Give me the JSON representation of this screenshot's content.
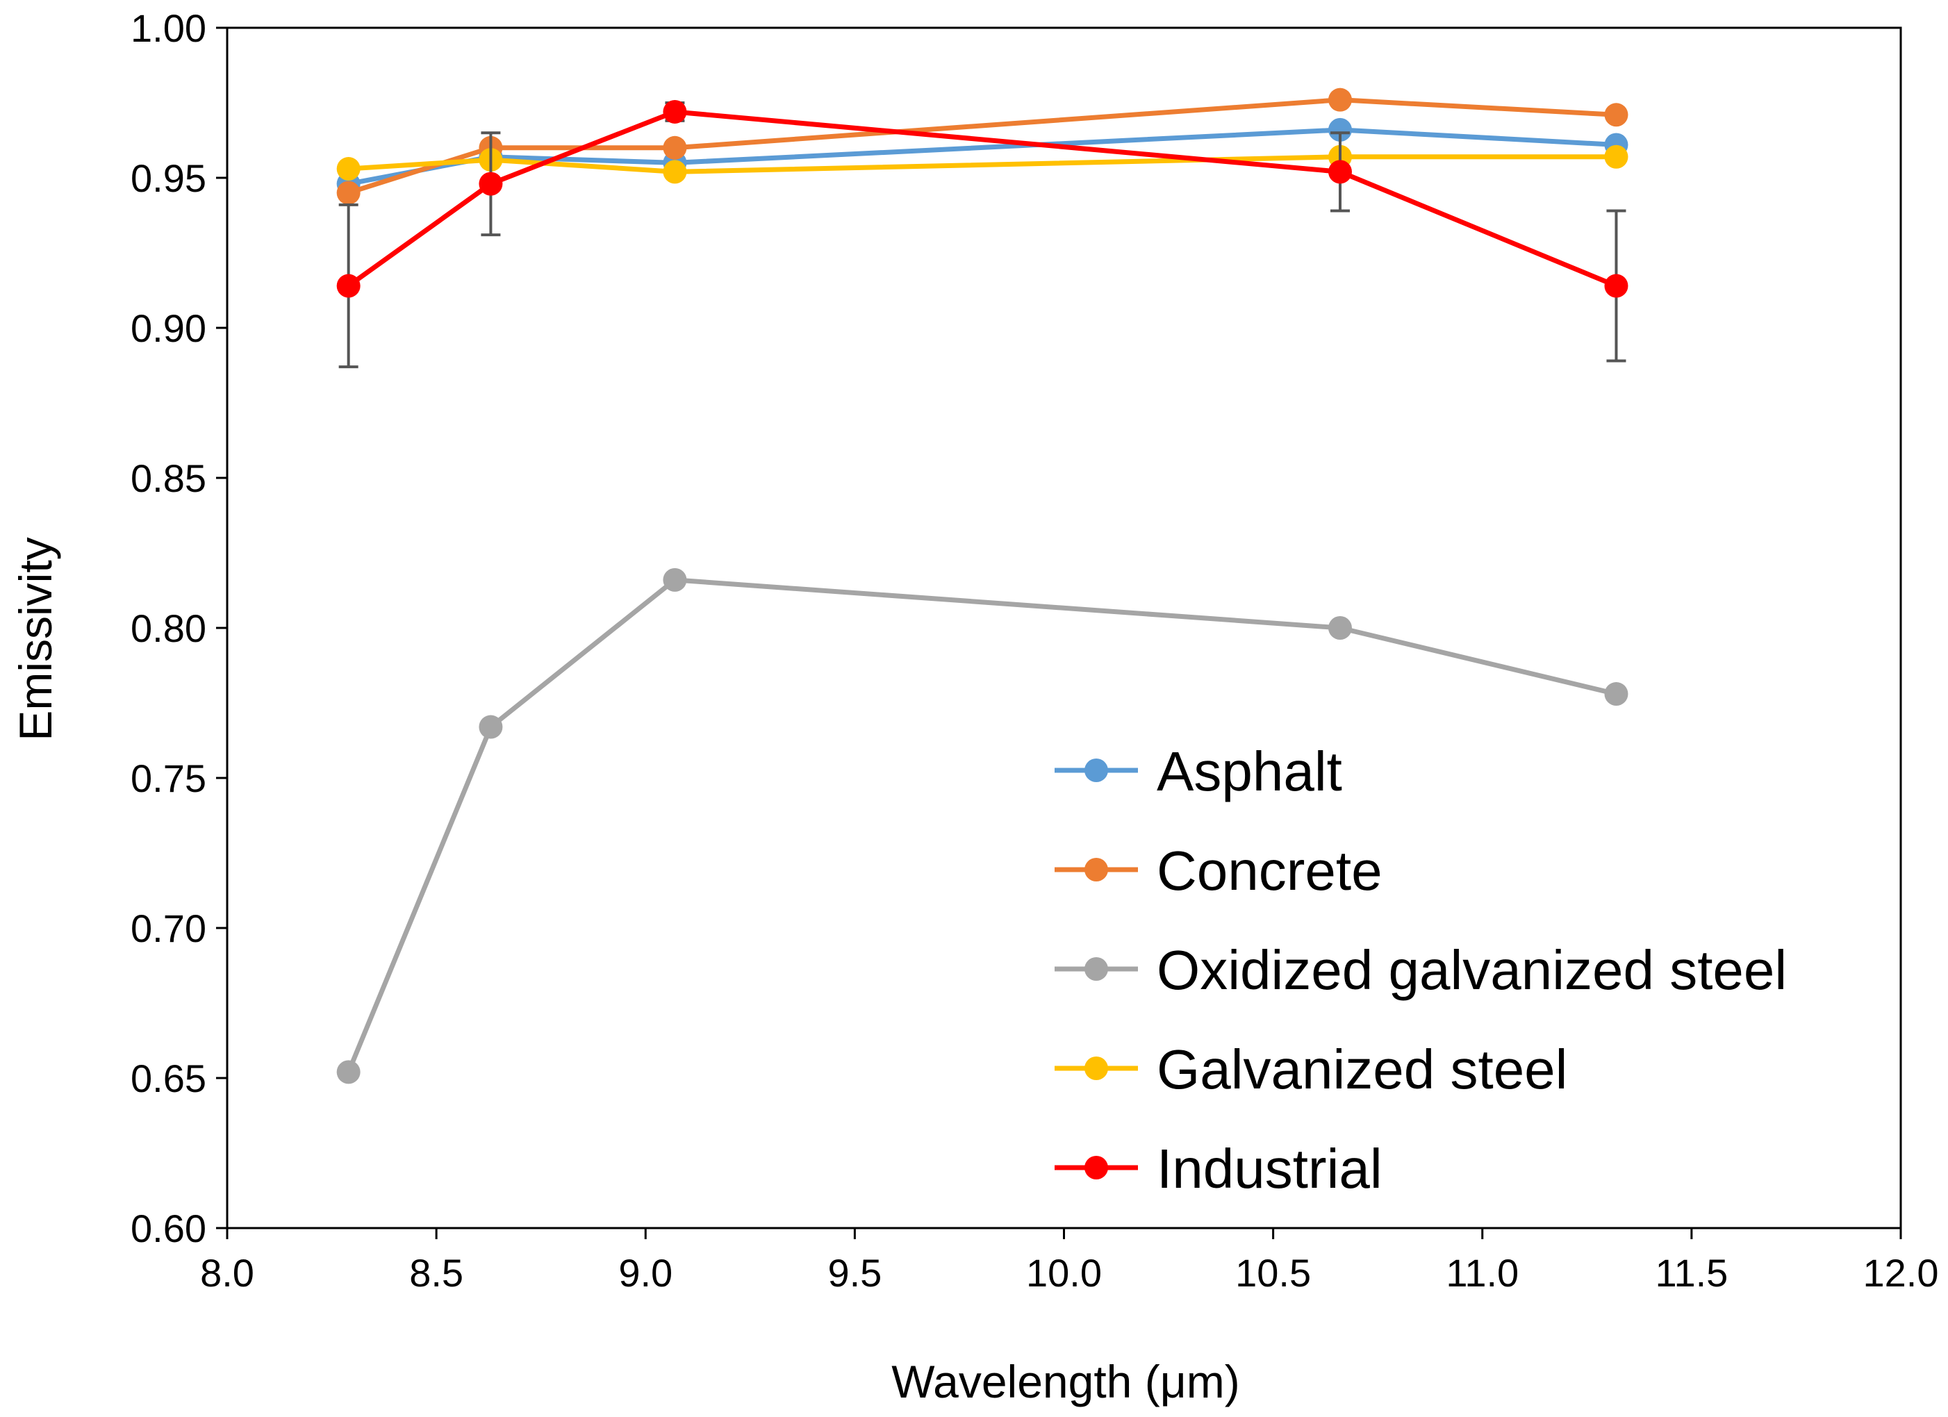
{
  "chart_data": {
    "type": "line",
    "title": "",
    "xlabel": "Wavelength (μm)",
    "ylabel": "Emissivity",
    "xlim": [
      8.0,
      12.0
    ],
    "ylim": [
      0.6,
      1.0
    ],
    "xticks": [
      "8.0",
      "8.5",
      "9.0",
      "9.5",
      "10.0",
      "10.5",
      "11.0",
      "11.5",
      "12.0"
    ],
    "yticks": [
      "0.60",
      "0.65",
      "0.70",
      "0.75",
      "0.80",
      "0.85",
      "0.90",
      "0.95",
      "1.00"
    ],
    "x": [
      8.29,
      8.63,
      9.07,
      10.66,
      11.32
    ],
    "legend_position": "bottom-right",
    "series": [
      {
        "name": "Asphalt",
        "color": "#5b9bd5",
        "values": [
          0.948,
          0.957,
          0.955,
          0.966,
          0.961
        ]
      },
      {
        "name": "Concrete",
        "color": "#ed7d31",
        "values": [
          0.945,
          0.96,
          0.96,
          0.976,
          0.971
        ]
      },
      {
        "name": "Oxidized galvanized steel",
        "color": "#a5a5a5",
        "values": [
          0.652,
          0.767,
          0.816,
          0.8,
          0.778
        ]
      },
      {
        "name": "Galvanized steel",
        "color": "#ffc000",
        "values": [
          0.953,
          0.956,
          0.952,
          0.957,
          0.957
        ]
      },
      {
        "name": "Industrial",
        "color": "#ff0000",
        "values": [
          0.914,
          0.948,
          0.972,
          0.952,
          0.914
        ],
        "error": [
          0.027,
          0.017,
          0.003,
          0.013,
          0.025
        ]
      }
    ]
  }
}
